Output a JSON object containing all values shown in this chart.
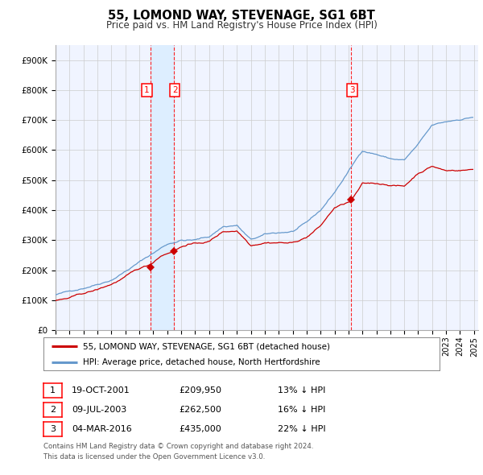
{
  "title": "55, LOMOND WAY, STEVENAGE, SG1 6BT",
  "subtitle": "Price paid vs. HM Land Registry's House Price Index (HPI)",
  "ylim": [
    0,
    950000
  ],
  "yticks": [
    0,
    100000,
    200000,
    300000,
    400000,
    500000,
    600000,
    700000,
    800000,
    900000
  ],
  "ytick_labels": [
    "£0",
    "£100K",
    "£200K",
    "£300K",
    "£400K",
    "£500K",
    "£600K",
    "£700K",
    "£800K",
    "£900K"
  ],
  "sale1_date": "19-OCT-2001",
  "sale1_price": 209950,
  "sale1_pct": "13%",
  "sale1_year": 2001.8,
  "sale2_date": "09-JUL-2003",
  "sale2_price": 262500,
  "sale2_pct": "16%",
  "sale2_year": 2003.5,
  "sale3_date": "04-MAR-2016",
  "sale3_price": 435000,
  "sale3_pct": "22%",
  "sale3_year": 2016.17,
  "hpi_color": "#6699cc",
  "price_color": "#cc0000",
  "marker_color": "#cc0000",
  "vline_color": "#ff0000",
  "shade_color": "#ddeeff",
  "grid_color": "#cccccc",
  "legend_label_red": "55, LOMOND WAY, STEVENAGE, SG1 6BT (detached house)",
  "legend_label_blue": "HPI: Average price, detached house, North Hertfordshire",
  "footnote1": "Contains HM Land Registry data © Crown copyright and database right 2024.",
  "footnote2": "This data is licensed under the Open Government Licence v3.0.",
  "background_color": "#ffffff",
  "plot_bg_color": "#f0f4ff",
  "hpi_ctrl_x": [
    1995.0,
    1996.0,
    1997.0,
    1998.0,
    1999.0,
    2000.0,
    2001.0,
    2002.0,
    2003.0,
    2004.0,
    2005.0,
    2006.0,
    2007.0,
    2008.0,
    2009.0,
    2010.0,
    2011.0,
    2012.0,
    2013.0,
    2014.0,
    2015.0,
    2016.0,
    2017.0,
    2018.0,
    2019.0,
    2020.0,
    2021.0,
    2022.0,
    2023.0,
    2024.0,
    2025.0
  ],
  "hpi_ctrl_y": [
    118000,
    128000,
    142000,
    158000,
    175000,
    205000,
    235000,
    265000,
    295000,
    310000,
    310000,
    320000,
    355000,
    360000,
    310000,
    325000,
    330000,
    335000,
    360000,
    400000,
    460000,
    530000,
    600000,
    590000,
    575000,
    570000,
    620000,
    680000,
    690000,
    700000,
    710000
  ],
  "prop_ctrl_x": [
    1995.0,
    1996.0,
    1997.0,
    1998.0,
    1999.0,
    2000.0,
    2001.0,
    2001.8,
    2002.5,
    2003.5,
    2004.5,
    2005.0,
    2006.0,
    2007.0,
    2008.0,
    2009.0,
    2010.0,
    2011.0,
    2012.0,
    2013.0,
    2014.0,
    2015.0,
    2016.17,
    2017.0,
    2018.0,
    2019.0,
    2020.0,
    2021.0,
    2022.0,
    2023.0,
    2024.0,
    2025.0
  ],
  "prop_ctrl_y": [
    98000,
    105000,
    118000,
    130000,
    148000,
    172000,
    196000,
    209950,
    240000,
    262500,
    285000,
    285000,
    292000,
    325000,
    330000,
    285000,
    298000,
    300000,
    298000,
    318000,
    355000,
    415000,
    435000,
    490000,
    490000,
    488000,
    483000,
    528000,
    553000,
    537000,
    540000,
    543000
  ]
}
